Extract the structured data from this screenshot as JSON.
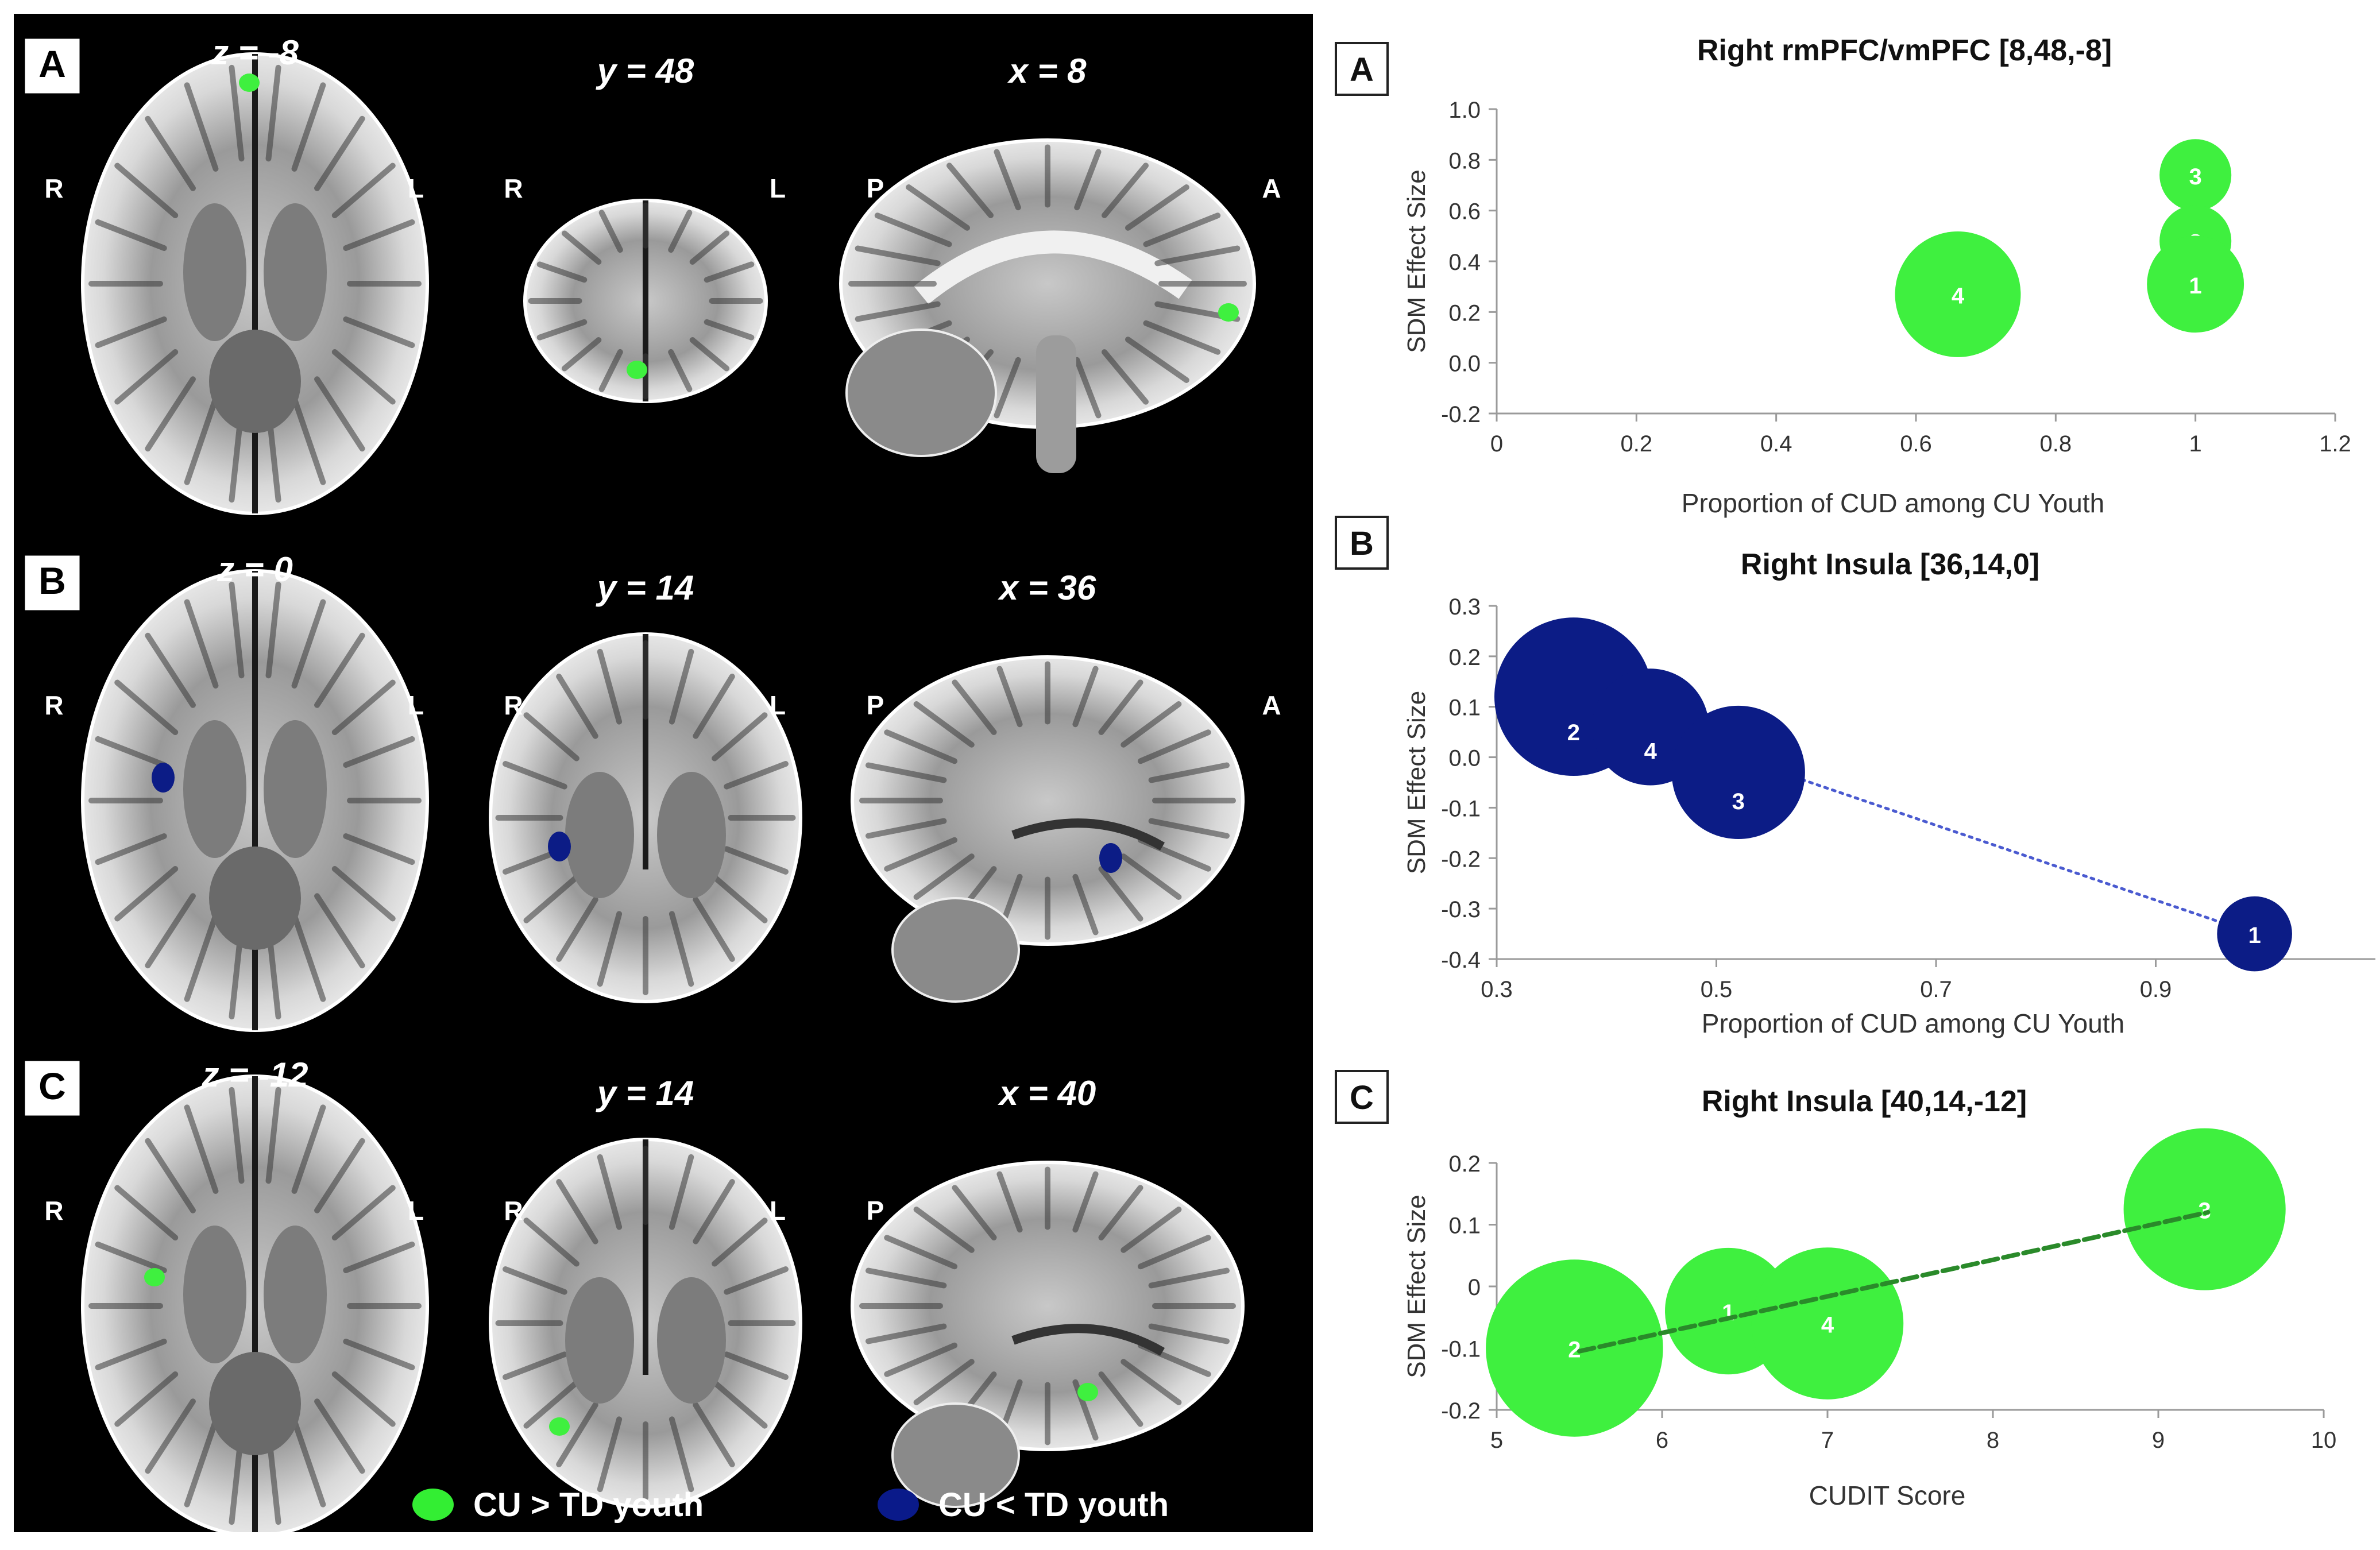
{
  "figure": {
    "left_panel": {
      "rows": [
        {
          "letter": "A",
          "slices": [
            {
              "label": "z = -8",
              "type": "axial",
              "left_marker": "R",
              "right_marker": "L",
              "cluster": "green"
            },
            {
              "label": "y = 48",
              "type": "coronal-small",
              "left_marker": "R",
              "right_marker": "L",
              "cluster": "green"
            },
            {
              "label": "x = 8",
              "type": "sagittal-full",
              "left_marker": "P",
              "right_marker": "A",
              "cluster": "green"
            }
          ]
        },
        {
          "letter": "B",
          "slices": [
            {
              "label": "z = 0",
              "type": "axial",
              "left_marker": "R",
              "right_marker": "L",
              "cluster": "blue"
            },
            {
              "label": "y = 14",
              "type": "coronal",
              "left_marker": "R",
              "right_marker": "L",
              "cluster": "blue"
            },
            {
              "label": "x = 36",
              "type": "sagittal-lateral",
              "left_marker": "P",
              "right_marker": "A",
              "cluster": "blue"
            }
          ]
        },
        {
          "letter": "C",
          "slices": [
            {
              "label": "z = -12",
              "type": "axial",
              "left_marker": "R",
              "right_marker": "L",
              "cluster": "green"
            },
            {
              "label": "y = 14",
              "type": "coronal",
              "left_marker": "R",
              "right_marker": "L",
              "cluster": "green"
            },
            {
              "label": "x = 40",
              "type": "sagittal-lateral",
              "left_marker": "P",
              "right_marker": "",
              "cluster": "green"
            }
          ]
        }
      ],
      "legend": [
        {
          "label": "CU > TD youth",
          "color": "#33ee33"
        },
        {
          "label": "CU < TD youth",
          "color": "#0a1a8a"
        }
      ]
    }
  },
  "colors": {
    "green": "#3ff03f",
    "navy": "#0c1c86",
    "green_trend": "#2a8a2a",
    "blue_trend": "#4a5ad0",
    "brain_bg": "#000000"
  },
  "chart_data": [
    {
      "panel_letter": "A",
      "type": "scatter",
      "title": "Right rmPFC/vmPFC [8,48,-8]",
      "xlabel": "Proportion of CUD among CU Youth",
      "ylabel": "SDM Effect Size",
      "xlim": [
        0,
        1.2
      ],
      "ylim": [
        -0.2,
        1.0
      ],
      "xticks": [
        "0",
        "0.2",
        "0.4",
        "0.6",
        "0.8",
        "1",
        "1.2"
      ],
      "xtick_values": [
        0,
        0.2,
        0.4,
        0.6,
        0.8,
        1.0,
        1.2
      ],
      "yticks": [
        "-0.2",
        "0.0",
        "0.2",
        "0.4",
        "0.6",
        "0.8",
        "1.0"
      ],
      "ytick_values": [
        -0.2,
        0.0,
        0.2,
        0.4,
        0.6,
        0.8,
        1.0
      ],
      "color": "#3ff03f",
      "trendline": null,
      "points": [
        {
          "label": "4",
          "x": 0.66,
          "y": 0.27,
          "weight": 1.75
        },
        {
          "label": "3",
          "x": 1.0,
          "y": 0.74,
          "weight": 1.0
        },
        {
          "label": "2",
          "x": 1.0,
          "y": 0.48,
          "weight": 1.0
        },
        {
          "label": "1",
          "x": 1.0,
          "y": 0.31,
          "weight": 1.35
        }
      ]
    },
    {
      "panel_letter": "B",
      "type": "scatter",
      "title": "Right Insula [36,14,0]",
      "xlabel": "Proportion of CUD among CU Youth",
      "ylabel": "SDM Effect Size",
      "xlim": [
        0.3,
        1.1
      ],
      "ylim": [
        -0.4,
        0.3
      ],
      "xticks": [
        "0.3",
        "0.5",
        "0.7",
        "0.9"
      ],
      "xtick_values": [
        0.3,
        0.5,
        0.7,
        0.9
      ],
      "yticks": [
        "-0.4",
        "-0.3",
        "-0.2",
        "-0.1",
        "0.0",
        "0.1",
        "0.2",
        "0.3"
      ],
      "ytick_values": [
        -0.4,
        -0.3,
        -0.2,
        -0.1,
        0.0,
        0.1,
        0.2,
        0.3
      ],
      "color": "#0c1c86",
      "trendline": {
        "x1": 0.37,
        "y1": 0.11,
        "x2": 0.99,
        "y2": -0.35,
        "style": "dotted",
        "color": "#4a5ad0"
      },
      "points": [
        {
          "label": "2",
          "x": 0.37,
          "y": 0.12,
          "weight": 1.9
        },
        {
          "label": "4",
          "x": 0.44,
          "y": 0.06,
          "weight": 1.4
        },
        {
          "label": "3",
          "x": 0.52,
          "y": -0.03,
          "weight": 1.6
        },
        {
          "label": "1",
          "x": 0.99,
          "y": -0.35,
          "weight": 0.9
        }
      ]
    },
    {
      "panel_letter": "C",
      "type": "scatter",
      "title": "Right Insula [40,14,-12]",
      "xlabel": "CUDIT Score",
      "ylabel": "SDM Effect Size",
      "xlim": [
        5,
        10
      ],
      "ylim": [
        -0.2,
        0.2
      ],
      "xticks": [
        "5",
        "6",
        "7",
        "8",
        "9",
        "10"
      ],
      "xtick_values": [
        5,
        6,
        7,
        8,
        9,
        10
      ],
      "yticks": [
        "-0.2",
        "-0.1",
        "0",
        "0.1",
        "0.2"
      ],
      "ytick_values": [
        -0.2,
        -0.1,
        0.0,
        0.1,
        0.2
      ],
      "color": "#3ff03f",
      "trendline": {
        "x1": 5.5,
        "y1": -0.105,
        "x2": 9.3,
        "y2": 0.12,
        "style": "dashed",
        "color": "#2a8a2a"
      },
      "points": [
        {
          "label": "2",
          "x": 5.47,
          "y": -0.1,
          "weight": 1.75
        },
        {
          "label": "1",
          "x": 6.4,
          "y": -0.04,
          "weight": 1.25
        },
        {
          "label": "4",
          "x": 7.0,
          "y": -0.06,
          "weight": 1.5
        },
        {
          "label": "3",
          "x": 9.28,
          "y": 0.125,
          "weight": 1.6
        }
      ]
    }
  ]
}
